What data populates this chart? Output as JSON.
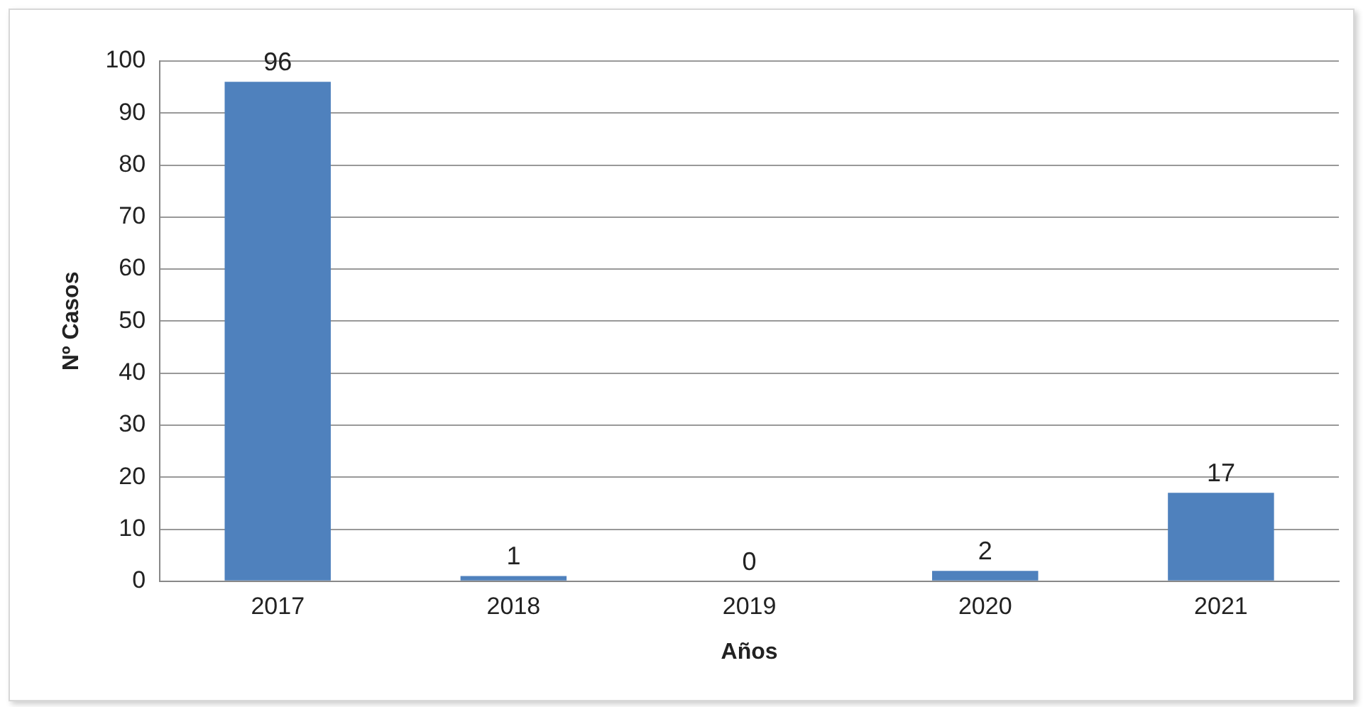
{
  "chart_data": {
    "type": "bar",
    "xlabel": "Años",
    "ylabel": "Nº Casos",
    "categories": [
      "2017",
      "2018",
      "2019",
      "2020",
      "2021"
    ],
    "values": [
      96,
      1,
      0,
      2,
      17
    ],
    "color": "#4f81bd",
    "ylim": [
      0,
      100
    ],
    "yticks": [
      0,
      10,
      20,
      30,
      40,
      50,
      60,
      70,
      80,
      90,
      100
    ],
    "grid": "y",
    "data_labels": true
  }
}
